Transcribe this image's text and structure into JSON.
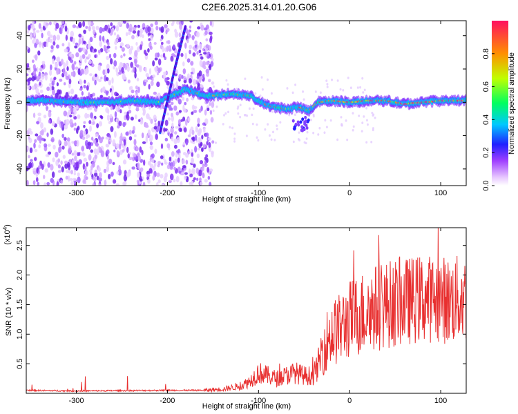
{
  "title": "C2E6.2025.314.01.20.G06",
  "chart_data": [
    {
      "type": "heatmap",
      "title": "",
      "xlabel": "Height of straight line (km)",
      "ylabel": "Frequency (Hz)",
      "xlim": [
        -355,
        128
      ],
      "ylim": [
        -50,
        49
      ],
      "xticks": [
        -300,
        -200,
        -100,
        0,
        100
      ],
      "yticks": [
        -40,
        -20,
        0,
        20,
        40
      ],
      "main_track": {
        "x": [
          -355,
          -330,
          -300,
          -260,
          -240,
          -210,
          -180,
          -160,
          -150,
          -130,
          -110,
          -90,
          -70,
          -55,
          -45,
          -35,
          -20,
          0,
          20,
          40,
          60,
          80,
          100,
          128
        ],
        "y": [
          1,
          1,
          0,
          0,
          1,
          0,
          8,
          4,
          4,
          5,
          4,
          -2,
          -4,
          -3,
          -5,
          0,
          1,
          0,
          1,
          1,
          -1,
          0,
          1,
          1
        ]
      },
      "streak": {
        "x": [
          -208,
          -192,
          -180
        ],
        "y": [
          -18,
          20,
          46
        ]
      },
      "colorbar": {
        "label": "Normalized spectral amplitude",
        "range": [
          0,
          1
        ],
        "ticks": [
          "0.0",
          "0.2",
          "0.4",
          "0.6",
          "0.8"
        ]
      }
    },
    {
      "type": "line",
      "title": "",
      "xlabel": "Height of straight line (km)",
      "ylabel": "SNR (10 * v/v)",
      "scale_label": "(x10",
      "scale_exponent": "4",
      "xlim": [
        -355,
        128
      ],
      "ylim": [
        0,
        2.8
      ],
      "xticks": [
        -300,
        -200,
        -100,
        0,
        100
      ],
      "yticks": [
        "0.5",
        "1.0",
        "1.5",
        "2.0",
        "2.5"
      ],
      "series": [
        {
          "name": "SNR",
          "color": "#e83030",
          "x": [
            -355,
            -300,
            -200,
            -160,
            -140,
            -120,
            -110,
            -100,
            -90,
            -80,
            -70,
            -60,
            -50,
            -40,
            -35,
            -30,
            -25,
            -20,
            -10,
            0,
            20,
            40,
            60,
            80,
            100,
            110,
            120,
            128
          ],
          "y": [
            0.05,
            0.04,
            0.05,
            0.05,
            0.07,
            0.12,
            0.2,
            0.35,
            0.3,
            0.25,
            0.3,
            0.35,
            0.3,
            0.3,
            0.45,
            0.75,
            0.9,
            1.0,
            1.1,
            1.25,
            1.4,
            1.5,
            1.55,
            1.6,
            1.6,
            1.55,
            1.6,
            1.6
          ]
        }
      ]
    }
  ]
}
